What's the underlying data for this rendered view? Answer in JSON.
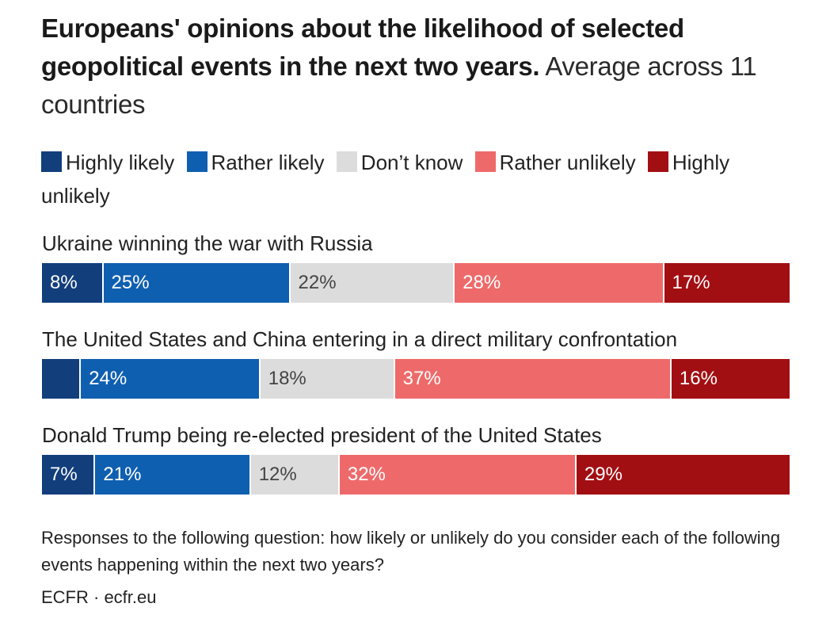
{
  "header": {
    "title_bold": "Europeans' opinions about the likelihood of selected geopolitical events in the next two years.",
    "title_rest": "Average across 11 countries"
  },
  "legend": [
    {
      "label": "Highly likely",
      "color": "#123e7c"
    },
    {
      "label": "Rather likely",
      "color": "#0f5fb0"
    },
    {
      "label": "Don’t know",
      "color": "#dcdcdc"
    },
    {
      "label": "Rather unlikely",
      "color": "#ee6a6a"
    },
    {
      "label": "Highly unlikely",
      "color": "#a20f13"
    }
  ],
  "chart_data": {
    "type": "bar",
    "orientation": "horizontal",
    "stacked": true,
    "normalized": true,
    "title": "Europeans' opinions about the likelihood of selected geopolitical events in the next two years. Average across 11 countries",
    "series_names": [
      "Highly likely",
      "Rather likely",
      "Don’t know",
      "Rather unlikely",
      "Highly unlikely"
    ],
    "categories": [
      "Ukraine winning the war with Russia",
      "The United States and China entering in a direct military confrontation",
      "Donald Trump being re-elected president of the United States"
    ],
    "values": [
      [
        8,
        25,
        22,
        28,
        17
      ],
      [
        5,
        24,
        18,
        37,
        16
      ],
      [
        7,
        21,
        12,
        32,
        29
      ]
    ],
    "labels": [
      [
        "8%",
        "25%",
        "22%",
        "28%",
        "17%"
      ],
      [
        "",
        "24%",
        "18%",
        "37%",
        "16%"
      ],
      [
        "7%",
        "21%",
        "12%",
        "32%",
        "29%"
      ]
    ],
    "unit": "%"
  },
  "footer": {
    "note": "Responses to the following question: how likely or unlikely do you consider each of the following events happening within the next two years?",
    "source": "ECFR · ecfr.eu"
  }
}
